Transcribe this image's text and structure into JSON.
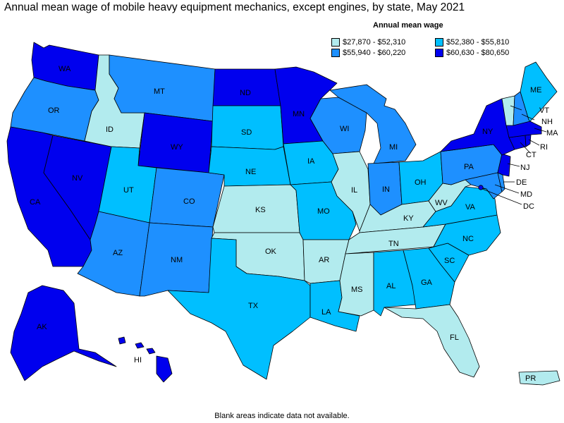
{
  "title": "Annual mean wage of mobile heavy equipment mechanics, except engines, by state, May 2021",
  "legend": {
    "title": "Annual mean wage",
    "bins": [
      {
        "label": "$27,870 - $52,310",
        "color": "#b2ebee"
      },
      {
        "label": "$52,380 - $55,810",
        "color": "#00bfff"
      },
      {
        "label": "$55,940 - $60,220",
        "color": "#1e90ff"
      },
      {
        "label": "$60,630 - $80,650",
        "color": "#0000ee"
      }
    ]
  },
  "footer": "Blank areas indicate data not available.",
  "states": {
    "WA": 3,
    "OR": 2,
    "CA": 3,
    "NV": 3,
    "ID": 0,
    "MT": 2,
    "WY": 3,
    "UT": 1,
    "AZ": 2,
    "CO": 2,
    "NM": 2,
    "ND": 3,
    "SD": 1,
    "NE": 1,
    "KS": 0,
    "OK": 0,
    "TX": 1,
    "MN": 3,
    "IA": 1,
    "MO": 1,
    "AR": 0,
    "LA": 1,
    "WI": 2,
    "IL": 0,
    "MI": 2,
    "IN": 2,
    "OH": 1,
    "KY": 0,
    "TN": 0,
    "MS": 0,
    "AL": 1,
    "GA": 1,
    "FL": 0,
    "SC": 1,
    "NC": 1,
    "VA": 1,
    "WV": 0,
    "PA": 2,
    "NY": 3,
    "ME": 1,
    "VT": 0,
    "NH": 2,
    "MA": 3,
    "RI": 3,
    "CT": 3,
    "NJ": 3,
    "DE": 2,
    "MD": 2,
    "DC": 3,
    "AK": 3,
    "HI": 3,
    "PR": 0
  }
}
